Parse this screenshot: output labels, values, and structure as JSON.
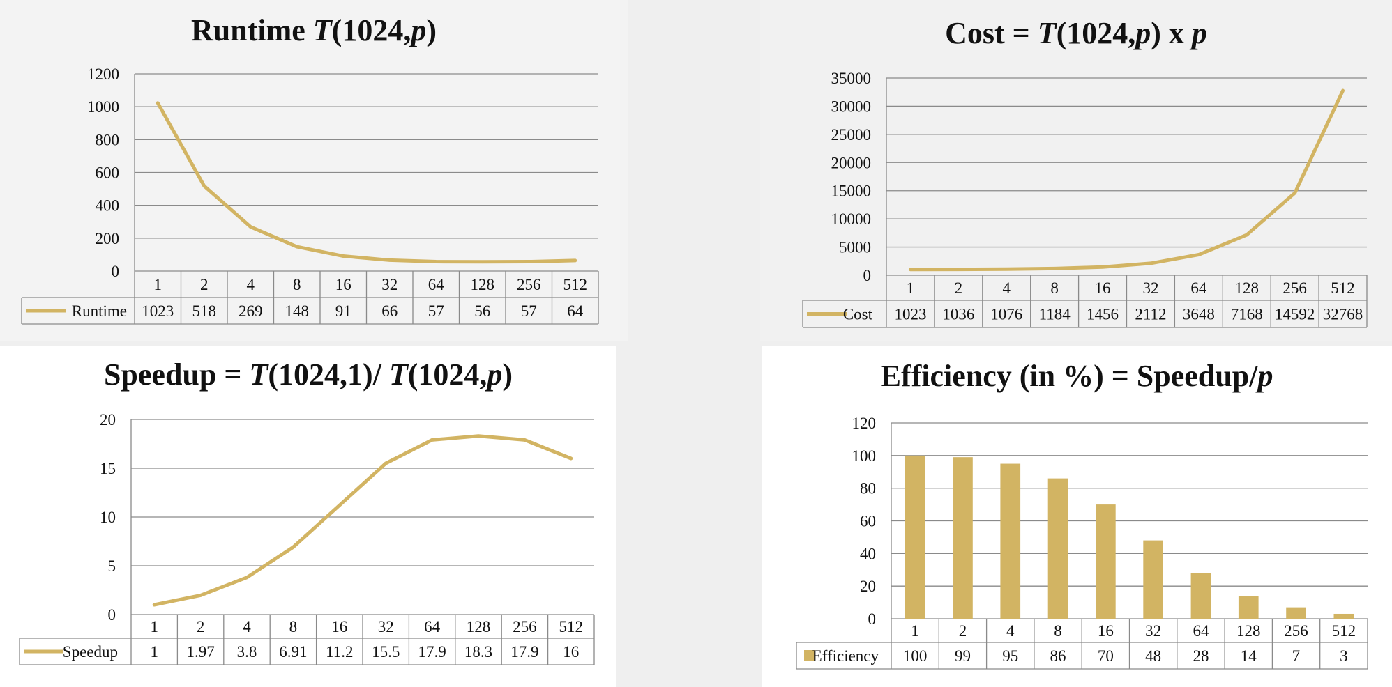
{
  "chart_data": [
    {
      "type": "line",
      "title_parts": [
        "Runtime  ",
        "T",
        "(1024,",
        "p",
        ")"
      ],
      "categories": [
        "1",
        "2",
        "4",
        "8",
        "16",
        "32",
        "64",
        "128",
        "256",
        "512"
      ],
      "series": [
        {
          "name": "Runtime",
          "values": [
            1023,
            518,
            269,
            148,
            91,
            66,
            57,
            56,
            57,
            64
          ]
        }
      ],
      "value_labels": [
        "1023",
        "518",
        "269",
        "148",
        "91",
        "66",
        "57",
        "56",
        "57",
        "64"
      ],
      "ylim": [
        0,
        1200
      ],
      "yticks": [
        "0",
        "200",
        "400",
        "600",
        "800",
        "1000",
        "1200"
      ],
      "color": "#d2b463",
      "grid": true,
      "legend": "data-table"
    },
    {
      "type": "line",
      "title_parts": [
        "Cost = ",
        "T",
        "(1024,",
        "p",
        ") x ",
        "p",
        ""
      ],
      "categories": [
        "1",
        "2",
        "4",
        "8",
        "16",
        "32",
        "64",
        "128",
        "256",
        "512"
      ],
      "series": [
        {
          "name": "Cost",
          "values": [
            1023,
            1036,
            1076,
            1184,
            1456,
            2112,
            3648,
            7168,
            14592,
            32768
          ]
        }
      ],
      "value_labels": [
        "1023",
        "1036",
        "1076",
        "1184",
        "1456",
        "2112",
        "3648",
        "7168",
        "14592",
        "32768"
      ],
      "ylim": [
        0,
        35000
      ],
      "yticks": [
        "0",
        "5000",
        "10000",
        "15000",
        "20000",
        "25000",
        "30000",
        "35000"
      ],
      "color": "#d2b463",
      "grid": true,
      "legend": "data-table"
    },
    {
      "type": "line",
      "title_parts": [
        "Speedup = ",
        "T",
        "(1024,1)/ ",
        "T",
        "(1024,",
        "p",
        ")"
      ],
      "categories": [
        "1",
        "2",
        "4",
        "8",
        "16",
        "32",
        "64",
        "128",
        "256",
        "512"
      ],
      "series": [
        {
          "name": "Speedup",
          "values": [
            1,
            1.97,
            3.8,
            6.91,
            11.2,
            15.5,
            17.9,
            18.3,
            17.9,
            16
          ]
        }
      ],
      "value_labels": [
        "1",
        "1.97",
        "3.8",
        "6.91",
        "11.2",
        "15.5",
        "17.9",
        "18.3",
        "17.9",
        "16"
      ],
      "ylim": [
        0,
        20
      ],
      "yticks": [
        "0",
        "5",
        "10",
        "15",
        "20"
      ],
      "color": "#d2b463",
      "grid": true,
      "legend": "data-table"
    },
    {
      "type": "bar",
      "title_parts": [
        "Efficiency (in %) = Speedup/",
        "p",
        ""
      ],
      "categories": [
        "1",
        "2",
        "4",
        "8",
        "16",
        "32",
        "64",
        "128",
        "256",
        "512"
      ],
      "series": [
        {
          "name": "Efficiency",
          "values": [
            100,
            99,
            95,
            86,
            70,
            48,
            28,
            14,
            7,
            3
          ]
        }
      ],
      "value_labels": [
        "100",
        "99",
        "95",
        "86",
        "70",
        "48",
        "28",
        "14",
        "7",
        "3"
      ],
      "ylim": [
        0,
        120
      ],
      "yticks": [
        "0",
        "20",
        "40",
        "60",
        "80",
        "100",
        "120"
      ],
      "color": "#d2b463",
      "grid": true,
      "legend": "data-table"
    }
  ]
}
